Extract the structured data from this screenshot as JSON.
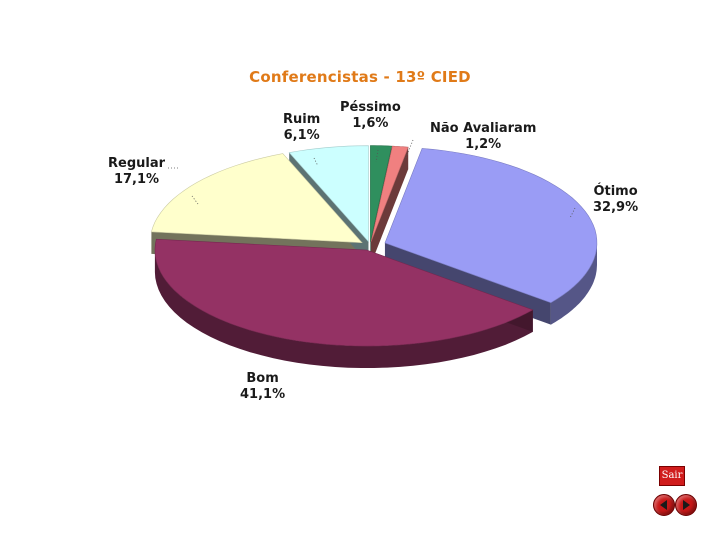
{
  "chart_data": {
    "type": "pie",
    "title": "Conferencistas - 13º CIED",
    "slices": [
      {
        "name": "Péssimo",
        "label": "1,6%",
        "value": 1.6,
        "color": "#2f8f5e"
      },
      {
        "name": "Não Avaliaram",
        "label": "1,2%",
        "value": 1.2,
        "color": "#f08080"
      },
      {
        "name": "Ótimo",
        "label": "32,9%",
        "value": 32.9,
        "color": "#9a9cf5"
      },
      {
        "name": "Bom",
        "label": "41,1%",
        "value": 41.1,
        "color": "#943264"
      },
      {
        "name": "Regular",
        "label": "17,1%",
        "value": 17.1,
        "color": "#ffffcc"
      },
      {
        "name": "Ruim",
        "label": "6,1%",
        "value": 6.1,
        "color": "#ccffff"
      }
    ]
  },
  "nav": {
    "exit_label": "Sair",
    "back_icon": "arrow-left-icon",
    "forward_icon": "arrow-right-icon"
  }
}
